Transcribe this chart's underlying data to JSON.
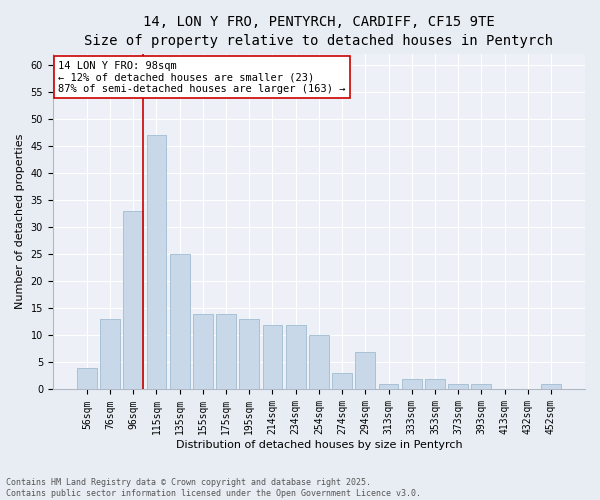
{
  "title1": "14, LON Y FRO, PENTYRCH, CARDIFF, CF15 9TE",
  "title2": "Size of property relative to detached houses in Pentyrch",
  "xlabel": "Distribution of detached houses by size in Pentyrch",
  "ylabel": "Number of detached properties",
  "categories": [
    "56sqm",
    "76sqm",
    "96sqm",
    "115sqm",
    "135sqm",
    "155sqm",
    "175sqm",
    "195sqm",
    "214sqm",
    "234sqm",
    "254sqm",
    "274sqm",
    "294sqm",
    "313sqm",
    "333sqm",
    "353sqm",
    "373sqm",
    "393sqm",
    "413sqm",
    "432sqm",
    "452sqm"
  ],
  "values": [
    4,
    13,
    33,
    47,
    25,
    14,
    14,
    13,
    12,
    12,
    10,
    3,
    7,
    1,
    2,
    2,
    1,
    1,
    0,
    0,
    1
  ],
  "bar_color": "#c8d8e8",
  "bar_edge_color": "#a0bcd0",
  "vline_color": "#cc0000",
  "annotation_line1": "14 LON Y FRO: 98sqm",
  "annotation_line2": "← 12% of detached houses are smaller (23)",
  "annotation_line3": "87% of semi-detached houses are larger (163) →",
  "annotation_box_color": "#ffffff",
  "annotation_box_edge_color": "#cc0000",
  "ylim": [
    0,
    62
  ],
  "yticks": [
    0,
    5,
    10,
    15,
    20,
    25,
    30,
    35,
    40,
    45,
    50,
    55,
    60
  ],
  "bg_color": "#e8edf3",
  "plot_bg_color": "#edf1f7",
  "footer": "Contains HM Land Registry data © Crown copyright and database right 2025.\nContains public sector information licensed under the Open Government Licence v3.0.",
  "title_fontsize": 10,
  "subtitle_fontsize": 9,
  "axis_label_fontsize": 8,
  "tick_fontsize": 7,
  "annotation_fontsize": 7.5,
  "footer_fontsize": 6
}
